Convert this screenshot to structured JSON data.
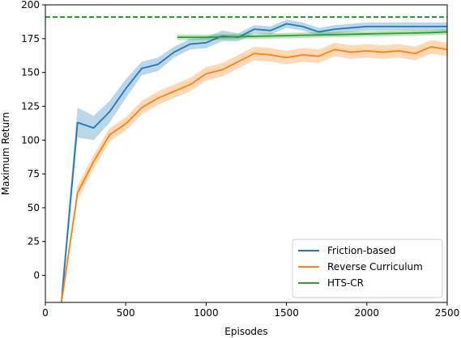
{
  "chart_data": {
    "type": "line",
    "xlabel": "Episodes",
    "ylabel": "Maximum Return",
    "xlim": [
      0,
      2500
    ],
    "ylim": [
      -20,
      200
    ],
    "xticks": [
      0,
      500,
      1000,
      1500,
      2000,
      2500
    ],
    "yticks": [
      0,
      25,
      50,
      75,
      100,
      125,
      150,
      175,
      200
    ],
    "grid": false,
    "legend_position": "lower-right",
    "reference_lines": [
      {
        "y": 191,
        "style": "dashed",
        "color": "#2ca02c"
      }
    ],
    "series": [
      {
        "name": "Friction-based",
        "color": "#1f77b4",
        "x": [
          100,
          200,
          300,
          400,
          500,
          600,
          700,
          800,
          900,
          1000,
          1100,
          1200,
          1300,
          1400,
          1500,
          1600,
          1700,
          1800,
          1900,
          2000,
          2100,
          2200,
          2300,
          2400,
          2500
        ],
        "y": [
          -20,
          113,
          109,
          121,
          138,
          153,
          156,
          165,
          171,
          172,
          177,
          176,
          182,
          181,
          186,
          184,
          180,
          182,
          183,
          184,
          184,
          184,
          184,
          184,
          184
        ],
        "band": [
          10,
          11,
          9,
          8,
          7,
          5,
          5,
          4,
          4,
          4,
          4,
          3,
          3,
          3,
          3,
          3,
          3,
          3,
          3,
          3,
          3,
          3,
          3,
          3,
          3
        ]
      },
      {
        "name": "Reverse Curriculum",
        "color": "#ff7f0e",
        "x": [
          100,
          200,
          300,
          400,
          500,
          600,
          700,
          800,
          900,
          1000,
          1100,
          1200,
          1300,
          1400,
          1500,
          1600,
          1700,
          1800,
          1900,
          2000,
          2100,
          2200,
          2300,
          2400,
          2500
        ],
        "y": [
          -20,
          61,
          84,
          104,
          112,
          124,
          131,
          136,
          141,
          149,
          152,
          158,
          164,
          163,
          161,
          163,
          162,
          167,
          165,
          166,
          165,
          166,
          164,
          169,
          167
        ],
        "band": [
          4,
          5,
          5,
          5,
          5,
          5,
          5,
          5,
          5,
          5,
          5,
          5,
          5,
          5,
          5,
          5,
          5,
          5,
          5,
          5,
          5,
          5,
          5,
          5,
          5
        ]
      },
      {
        "name": "HTS-CR",
        "color": "#2ca02c",
        "x": [
          820,
          1000,
          1200,
          1400,
          1600,
          1800,
          2000,
          2200,
          2400,
          2500
        ],
        "y": [
          176,
          176,
          176.5,
          177,
          177.5,
          178,
          178.5,
          179,
          179.5,
          180
        ],
        "band": [
          2,
          2,
          2,
          2,
          2,
          2,
          2,
          2,
          2,
          2
        ]
      }
    ]
  }
}
